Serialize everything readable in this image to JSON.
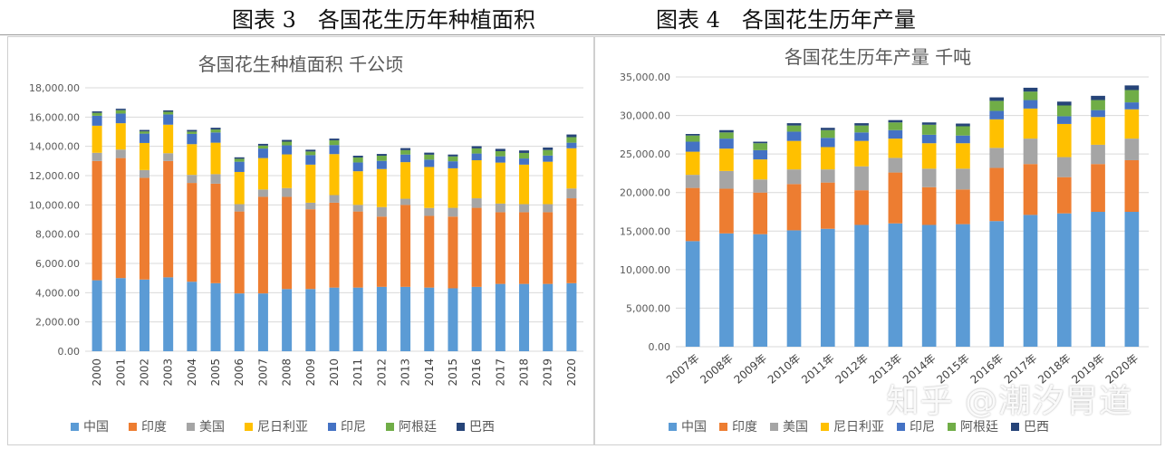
{
  "figures": {
    "fig3_title": "图表 3　各国花生历年种植面积",
    "fig4_title": "图表 4　各国花生历年产量"
  },
  "watermark": "知乎 @潮汐胃道",
  "chart_data": [
    {
      "type": "bar",
      "stacked": true,
      "title": "各国花生种植面积  千公顷",
      "ylim": [
        0,
        18000
      ],
      "yticks": [
        0,
        2000,
        4000,
        6000,
        8000,
        10000,
        12000,
        14000,
        16000,
        18000
      ],
      "ytick_labels": [
        "0.00",
        "2,000.00",
        "4,000.00",
        "6,000.00",
        "8,000.00",
        "10,000.00",
        "12,000.00",
        "14,000.00",
        "16,000.00",
        "18,000.00"
      ],
      "grid": true,
      "legend_position": "bottom",
      "categories": [
        "2000",
        "2001",
        "2002",
        "2003",
        "2004",
        "2005",
        "2006",
        "2007",
        "2008",
        "2009",
        "2010",
        "2011",
        "2012",
        "2013",
        "2014",
        "2015",
        "2016",
        "2017",
        "2018",
        "2019",
        "2020"
      ],
      "series": [
        {
          "name": "中国",
          "color": "#5B9BD5",
          "values": [
            4850,
            5000,
            4900,
            5050,
            4750,
            4650,
            3950,
            3950,
            4250,
            4250,
            4350,
            4350,
            4400,
            4400,
            4350,
            4300,
            4400,
            4600,
            4600,
            4600,
            4650
          ]
        },
        {
          "name": "印度",
          "color": "#ED7D31",
          "values": [
            8150,
            8200,
            6950,
            7950,
            6750,
            6800,
            5600,
            6600,
            6300,
            5450,
            5800,
            5200,
            4800,
            5600,
            4900,
            4900,
            5400,
            4900,
            4900,
            4900,
            5800
          ]
        },
        {
          "name": "美国",
          "color": "#A5A5A5",
          "values": [
            560,
            580,
            530,
            530,
            550,
            650,
            500,
            500,
            600,
            450,
            520,
            450,
            650,
            420,
            540,
            600,
            650,
            590,
            550,
            550,
            670
          ]
        },
        {
          "name": "尼日利亚",
          "color": "#FFC000",
          "values": [
            1850,
            1800,
            1850,
            1950,
            2100,
            2150,
            2200,
            2150,
            2300,
            2600,
            2800,
            2300,
            2600,
            2500,
            2800,
            2700,
            2600,
            2800,
            2700,
            2900,
            2750
          ]
        },
        {
          "name": "印尼",
          "color": "#4472C4",
          "values": [
            680,
            660,
            640,
            700,
            700,
            700,
            700,
            650,
            620,
            650,
            620,
            600,
            560,
            520,
            500,
            480,
            460,
            430,
            420,
            420,
            380
          ]
        },
        {
          "name": "阿根廷",
          "color": "#70AD47",
          "values": [
            200,
            230,
            150,
            180,
            160,
            200,
            200,
            200,
            250,
            250,
            320,
            340,
            350,
            300,
            340,
            330,
            350,
            350,
            380,
            380,
            380
          ]
        },
        {
          "name": "巴西",
          "color": "#264478",
          "values": [
            100,
            100,
            100,
            100,
            110,
            120,
            100,
            120,
            120,
            120,
            120,
            120,
            120,
            140,
            140,
            130,
            150,
            160,
            170,
            170,
            180
          ]
        }
      ]
    },
    {
      "type": "bar",
      "stacked": true,
      "title": "各国花生历年产量  千吨",
      "ylim": [
        0,
        35000
      ],
      "yticks": [
        0,
        5000,
        10000,
        15000,
        20000,
        25000,
        30000,
        35000
      ],
      "ytick_labels": [
        "0.00",
        "5,000.00",
        "10,000.00",
        "15,000.00",
        "20,000.00",
        "25,000.00",
        "30,000.00",
        "35,000.00"
      ],
      "grid": true,
      "legend_position": "bottom",
      "categories": [
        "2007年",
        "2008年",
        "2009年",
        "2010年",
        "2011年",
        "2012年",
        "2013年",
        "2014年",
        "2015年",
        "2016年",
        "2017年",
        "2018年",
        "2019年",
        "2020年"
      ],
      "series": [
        {
          "name": "中国",
          "color": "#5B9BD5",
          "values": [
            13700,
            14700,
            14600,
            15100,
            15300,
            15800,
            16000,
            15800,
            15900,
            16300,
            17100,
            17300,
            17500,
            17500
          ]
        },
        {
          "name": "印度",
          "color": "#ED7D31",
          "values": [
            6900,
            5800,
            5400,
            6000,
            6000,
            4500,
            6600,
            4900,
            4500,
            6900,
            6600,
            4700,
            6200,
            6700
          ]
        },
        {
          "name": "美国",
          "color": "#A5A5A5",
          "values": [
            1700,
            2300,
            1700,
            1900,
            1700,
            3100,
            1900,
            2400,
            2700,
            2600,
            3300,
            2600,
            2500,
            2800
          ]
        },
        {
          "name": "尼日利亚",
          "color": "#FFC000",
          "values": [
            3000,
            2900,
            2600,
            3700,
            2900,
            3300,
            2500,
            3300,
            3300,
            3700,
            3900,
            4300,
            3600,
            3800
          ]
        },
        {
          "name": "印尼",
          "color": "#4472C4",
          "values": [
            1300,
            1300,
            1200,
            1200,
            1200,
            1100,
            1100,
            1100,
            1000,
            1100,
            1100,
            1000,
            900,
            900
          ]
        },
        {
          "name": "阿根廷",
          "color": "#70AD47",
          "values": [
            800,
            800,
            900,
            800,
            1000,
            900,
            1000,
            1300,
            1200,
            1300,
            1100,
            1400,
            1300,
            1600
          ]
        },
        {
          "name": "巴西",
          "color": "#264478",
          "values": [
            200,
            300,
            200,
            300,
            300,
            300,
            300,
            300,
            350,
            450,
            500,
            500,
            550,
            600
          ]
        }
      ]
    }
  ]
}
